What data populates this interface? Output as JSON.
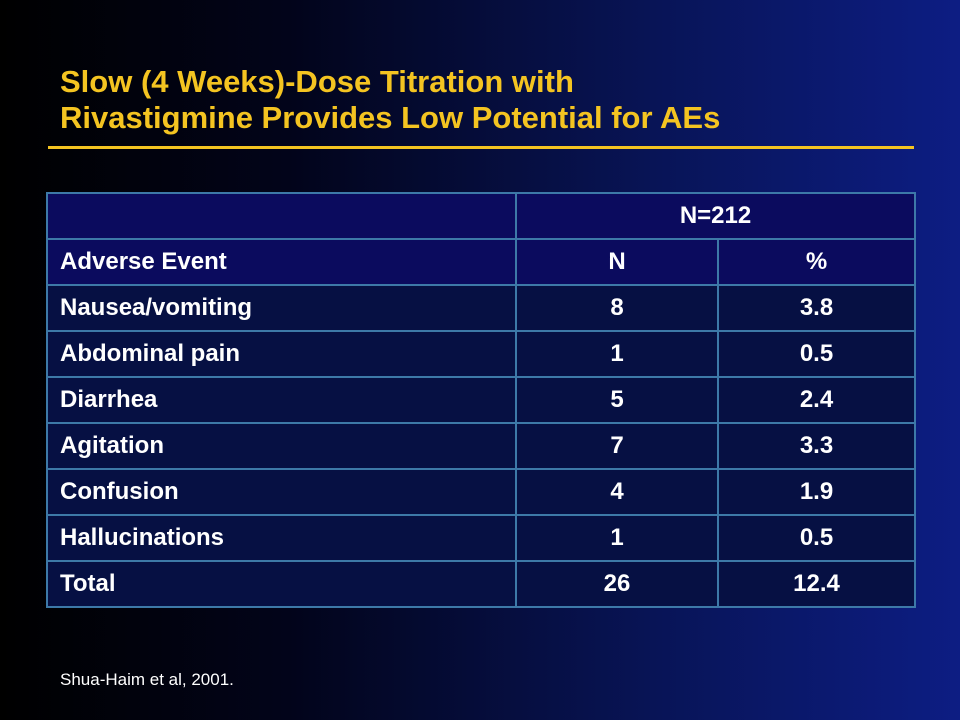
{
  "slide": {
    "title_lines": [
      "Slow (4 Weeks)-Dose Titration with",
      "Rivastigmine Provides Low Potential for AEs"
    ],
    "citation": "Shua-Haim et al, 2001."
  },
  "table": {
    "group_header": "N=212",
    "columns": [
      "Adverse Event",
      "N",
      "%"
    ],
    "rows": [
      {
        "event": "Nausea/vomiting",
        "n": "8",
        "pct": "3.8"
      },
      {
        "event": "Abdominal pain",
        "n": "1",
        "pct": "0.5"
      },
      {
        "event": "Diarrhea",
        "n": "5",
        "pct": "2.4"
      },
      {
        "event": "Agitation",
        "n": "7",
        "pct": "3.3"
      },
      {
        "event": "Confusion",
        "n": "4",
        "pct": "1.9"
      },
      {
        "event": "Hallucinations",
        "n": "1",
        "pct": "0.5"
      },
      {
        "event": "Total",
        "n": "26",
        "pct": "12.4"
      }
    ]
  },
  "colors": {
    "title": "#f4c421",
    "table_border": "#3d79a8",
    "header_fill": "#0b0b5e",
    "body_fill": "#061043",
    "text": "#ffffff"
  }
}
